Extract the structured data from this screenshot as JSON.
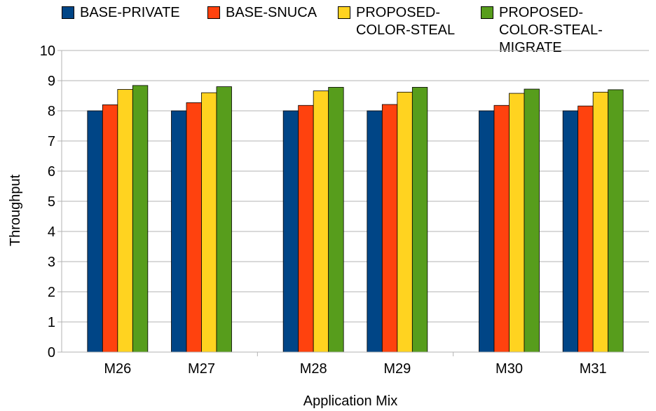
{
  "chart_data": {
    "type": "bar",
    "title": "",
    "xlabel": "Application Mix",
    "ylabel": "Throughput",
    "ylim": [
      0,
      10
    ],
    "yticks": [
      "0",
      "1",
      "2",
      "3",
      "4",
      "5",
      "6",
      "7",
      "8",
      "9",
      "10"
    ],
    "grid": true,
    "legend_position": "top",
    "groups": [
      {
        "categories": [
          "M26",
          "M27"
        ]
      },
      {
        "categories": [
          "M28",
          "M29"
        ]
      },
      {
        "categories": [
          "M30",
          "M31"
        ]
      }
    ],
    "categories": [
      "M26",
      "M27",
      "M28",
      "M29",
      "M30",
      "M31"
    ],
    "series": [
      {
        "name": "BASE-PRIVATE",
        "color": "#004586",
        "values": [
          8.0,
          8.0,
          8.0,
          8.0,
          8.0,
          8.0
        ]
      },
      {
        "name": "BASE-SNUCA",
        "color": "#ff420e",
        "values": [
          8.2,
          8.27,
          8.18,
          8.21,
          8.18,
          8.16
        ]
      },
      {
        "name": "PROPOSED-\nCOLOR-STEAL",
        "color": "#ffd320",
        "values": [
          8.71,
          8.6,
          8.66,
          8.62,
          8.58,
          8.62
        ]
      },
      {
        "name": "PROPOSED-\nCOLOR-STEAL-\nMIGRATE",
        "color": "#579d1c",
        "values": [
          8.84,
          8.8,
          8.78,
          8.78,
          8.72,
          8.7
        ]
      }
    ]
  }
}
